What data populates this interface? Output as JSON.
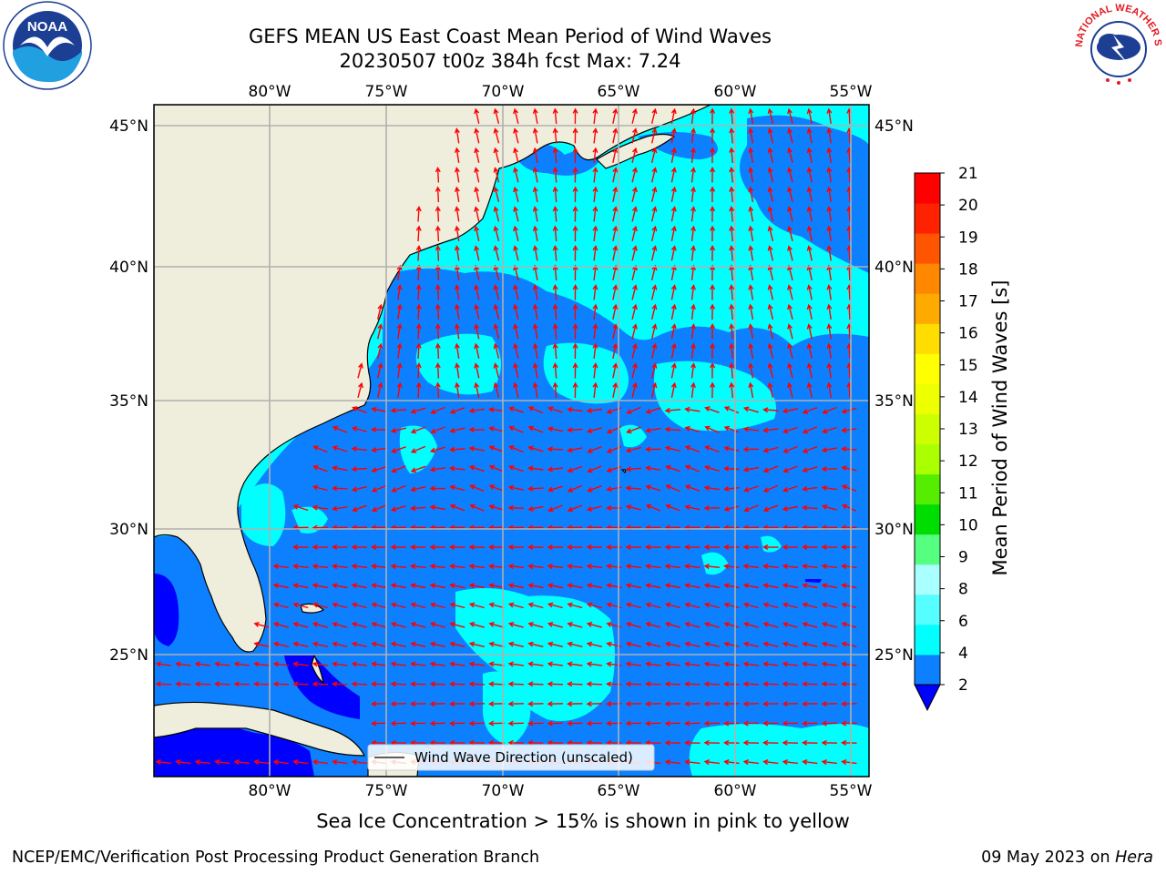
{
  "title_line1": "GEFS MEAN US East Coast Mean Period of Wind Waves",
  "title_line2": "20230507 t00z 384h fcst   Max: 7.24",
  "map": {
    "lon_labels": [
      "80°W",
      "75°W",
      "70°W",
      "65°W",
      "60°W",
      "55°W"
    ],
    "lat_labels": [
      "45°N",
      "40°N",
      "35°N",
      "30°N",
      "25°N"
    ],
    "legend_label": "Wind Wave Direction (unscaled)",
    "arrow_color": "#ff0000",
    "land_color": "#efeedd",
    "ocean_low_color": "#0d80ff",
    "ocean_mid_color": "#00ffff"
  },
  "colorbar": {
    "label": "Mean Period of Wind Waves [s]",
    "ticks": [
      "2",
      "4",
      "6",
      "8",
      "9",
      "10",
      "11",
      "12",
      "13",
      "14",
      "15",
      "16",
      "17",
      "18",
      "19",
      "20",
      "21"
    ],
    "underflow_color": "#0000ff",
    "colors": [
      "#0d80ff",
      "#00ffff",
      "#55ffff",
      "#aaffff",
      "#55ff80",
      "#00dd00",
      "#55ee00",
      "#aaff00",
      "#ccff00",
      "#eeff00",
      "#ffff00",
      "#ffdd00",
      "#ffaa00",
      "#ff8800",
      "#ff5500",
      "#ff2200",
      "#ff0000"
    ]
  },
  "bottom_note": "Sea Ice Concentration > 15% is shown in pink to yellow",
  "credit": "NCEP/EMC/Verification Post Processing Product Generation Branch",
  "date_text": "09 May 2023 on",
  "machine": "Hera",
  "logos": {
    "noaa_text": "NOAA",
    "nws_text": "NATIONAL WEATHER SERVICE"
  }
}
